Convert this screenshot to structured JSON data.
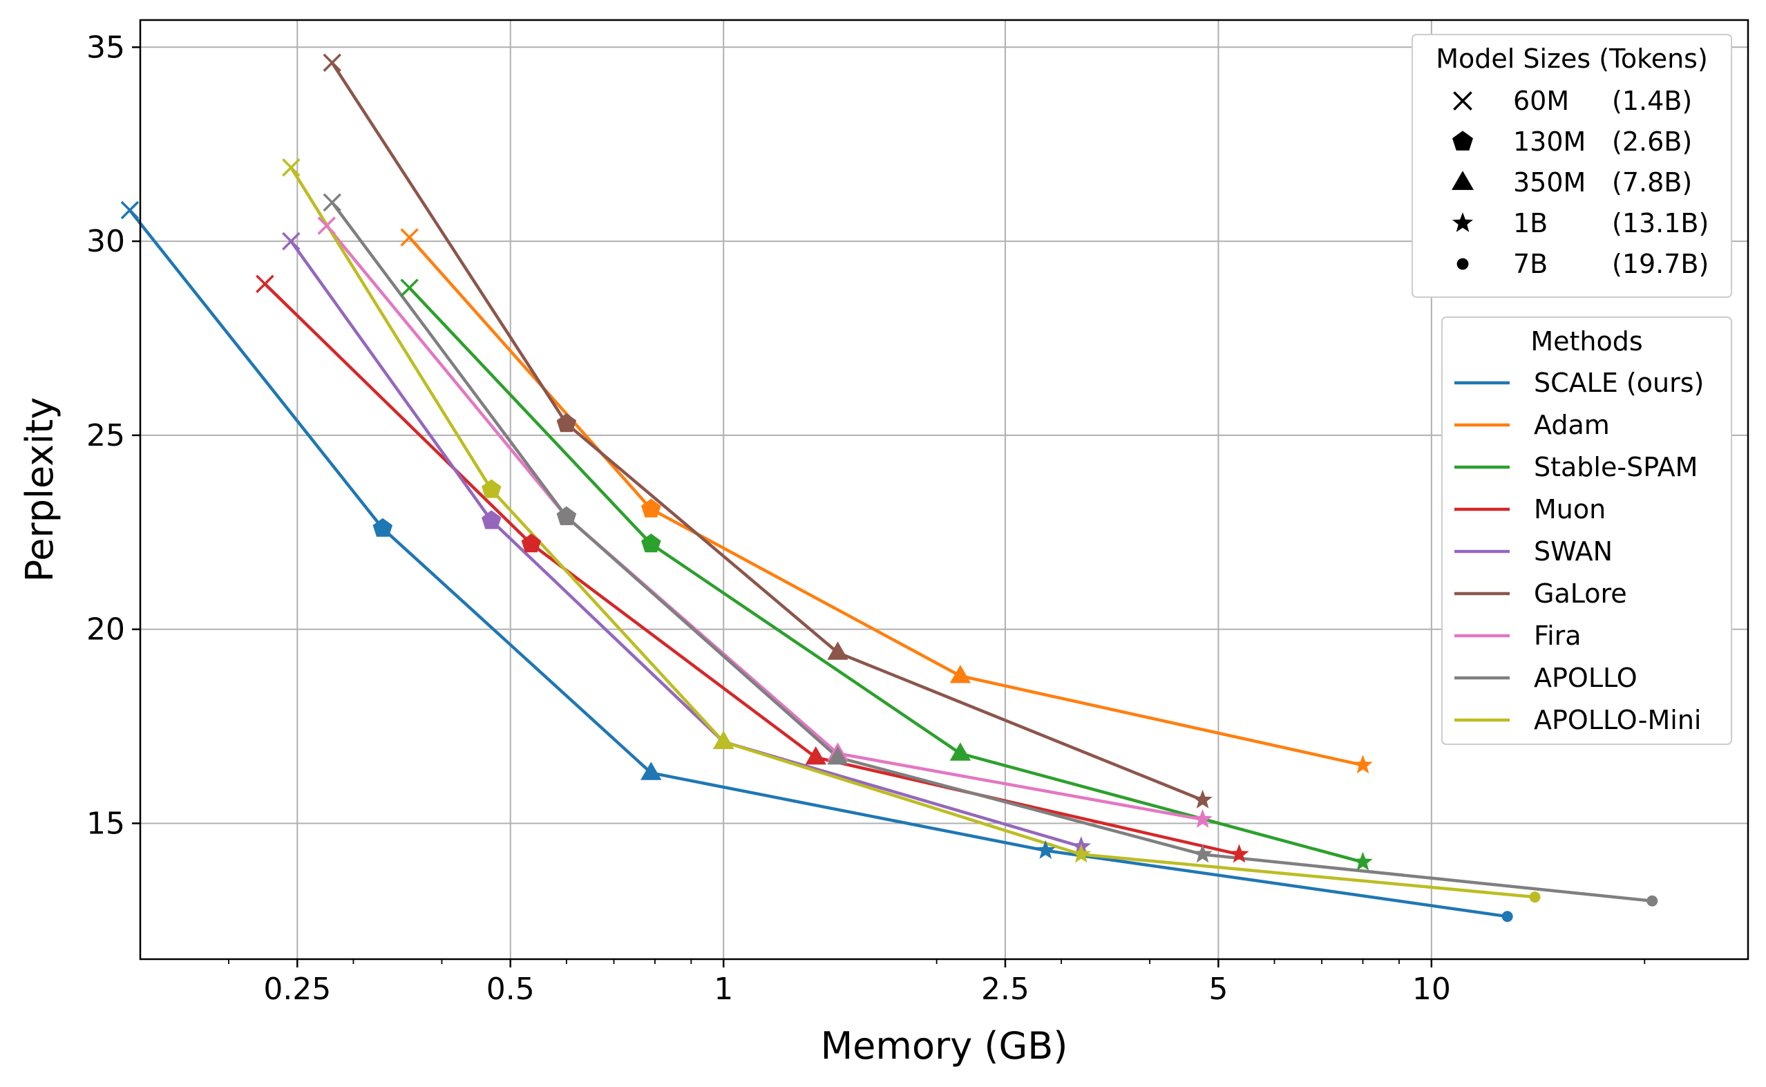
{
  "chart_data": {
    "type": "line",
    "xlabel": "Memory (GB)",
    "ylabel": "Perplexity",
    "x_scale": "log",
    "xlim": [
      0.15,
      28
    ],
    "ylim": [
      11.5,
      35.7
    ],
    "grid": true,
    "x_ticks": [
      0.25,
      0.5,
      1,
      2.5,
      5,
      10
    ],
    "x_tick_labels": [
      "0.25",
      "0.5",
      "1",
      "2.5",
      "5",
      "10"
    ],
    "y_ticks": [
      15,
      20,
      25,
      30,
      35
    ],
    "y_tick_labels": [
      "15",
      "20",
      "25",
      "30",
      "35"
    ],
    "model_sizes_legend": {
      "title": "Model Sizes (Tokens)",
      "placement": "top-right",
      "entries": [
        {
          "marker": "x",
          "size": "60M",
          "tokens": "(1.4B)"
        },
        {
          "marker": "pentagon",
          "size": "130M",
          "tokens": "(2.6B)"
        },
        {
          "marker": "triangle",
          "size": "350M",
          "tokens": "(7.8B)"
        },
        {
          "marker": "star",
          "size": "1B",
          "tokens": "(13.1B)"
        },
        {
          "marker": "dot",
          "size": "7B",
          "tokens": "(19.7B)"
        }
      ]
    },
    "methods_legend": {
      "title": "Methods",
      "placement": "right"
    },
    "series": [
      {
        "name": "SCALE (ours)",
        "color": "#1f77b4",
        "points": [
          [
            0.145,
            30.8
          ],
          [
            0.33,
            22.6
          ],
          [
            0.79,
            16.3
          ],
          [
            2.85,
            14.3
          ],
          [
            12.8,
            12.6
          ]
        ]
      },
      {
        "name": "Adam",
        "color": "#ff7f0e",
        "points": [
          [
            0.36,
            30.1
          ],
          [
            0.79,
            23.1
          ],
          [
            2.16,
            18.8
          ],
          [
            8.0,
            16.5
          ]
        ]
      },
      {
        "name": "Stable-SPAM",
        "color": "#2ca02c",
        "points": [
          [
            0.36,
            28.8
          ],
          [
            0.79,
            22.2
          ],
          [
            2.16,
            16.8
          ],
          [
            8.0,
            14.0
          ]
        ]
      },
      {
        "name": "Muon",
        "color": "#d62728",
        "points": [
          [
            0.225,
            28.9
          ],
          [
            0.535,
            22.2
          ],
          [
            1.35,
            16.7
          ],
          [
            5.35,
            14.2
          ]
        ]
      },
      {
        "name": "SWAN",
        "color": "#9467bd",
        "points": [
          [
            0.245,
            30.0
          ],
          [
            0.47,
            22.8
          ],
          [
            1.0,
            17.1
          ],
          [
            3.2,
            14.4
          ]
        ]
      },
      {
        "name": "GaLore",
        "color": "#8c564b",
        "points": [
          [
            0.28,
            34.6
          ],
          [
            0.6,
            25.3
          ],
          [
            1.45,
            19.4
          ],
          [
            4.75,
            15.6
          ]
        ]
      },
      {
        "name": "Fira",
        "color": "#e377c2",
        "points": [
          [
            0.275,
            30.4
          ],
          [
            0.6,
            22.9
          ],
          [
            1.45,
            16.8
          ],
          [
            4.75,
            15.1
          ]
        ]
      },
      {
        "name": "APOLLO",
        "color": "#7f7f7f",
        "points": [
          [
            0.28,
            31.0
          ],
          [
            0.6,
            22.9
          ],
          [
            1.45,
            16.7
          ],
          [
            4.75,
            14.2
          ],
          [
            20.5,
            13.0
          ]
        ]
      },
      {
        "name": "APOLLO-Mini",
        "color": "#bcbd22",
        "points": [
          [
            0.245,
            31.9
          ],
          [
            0.47,
            23.6
          ],
          [
            1.0,
            17.1
          ],
          [
            3.2,
            14.2
          ],
          [
            14.0,
            13.1
          ]
        ]
      }
    ]
  }
}
